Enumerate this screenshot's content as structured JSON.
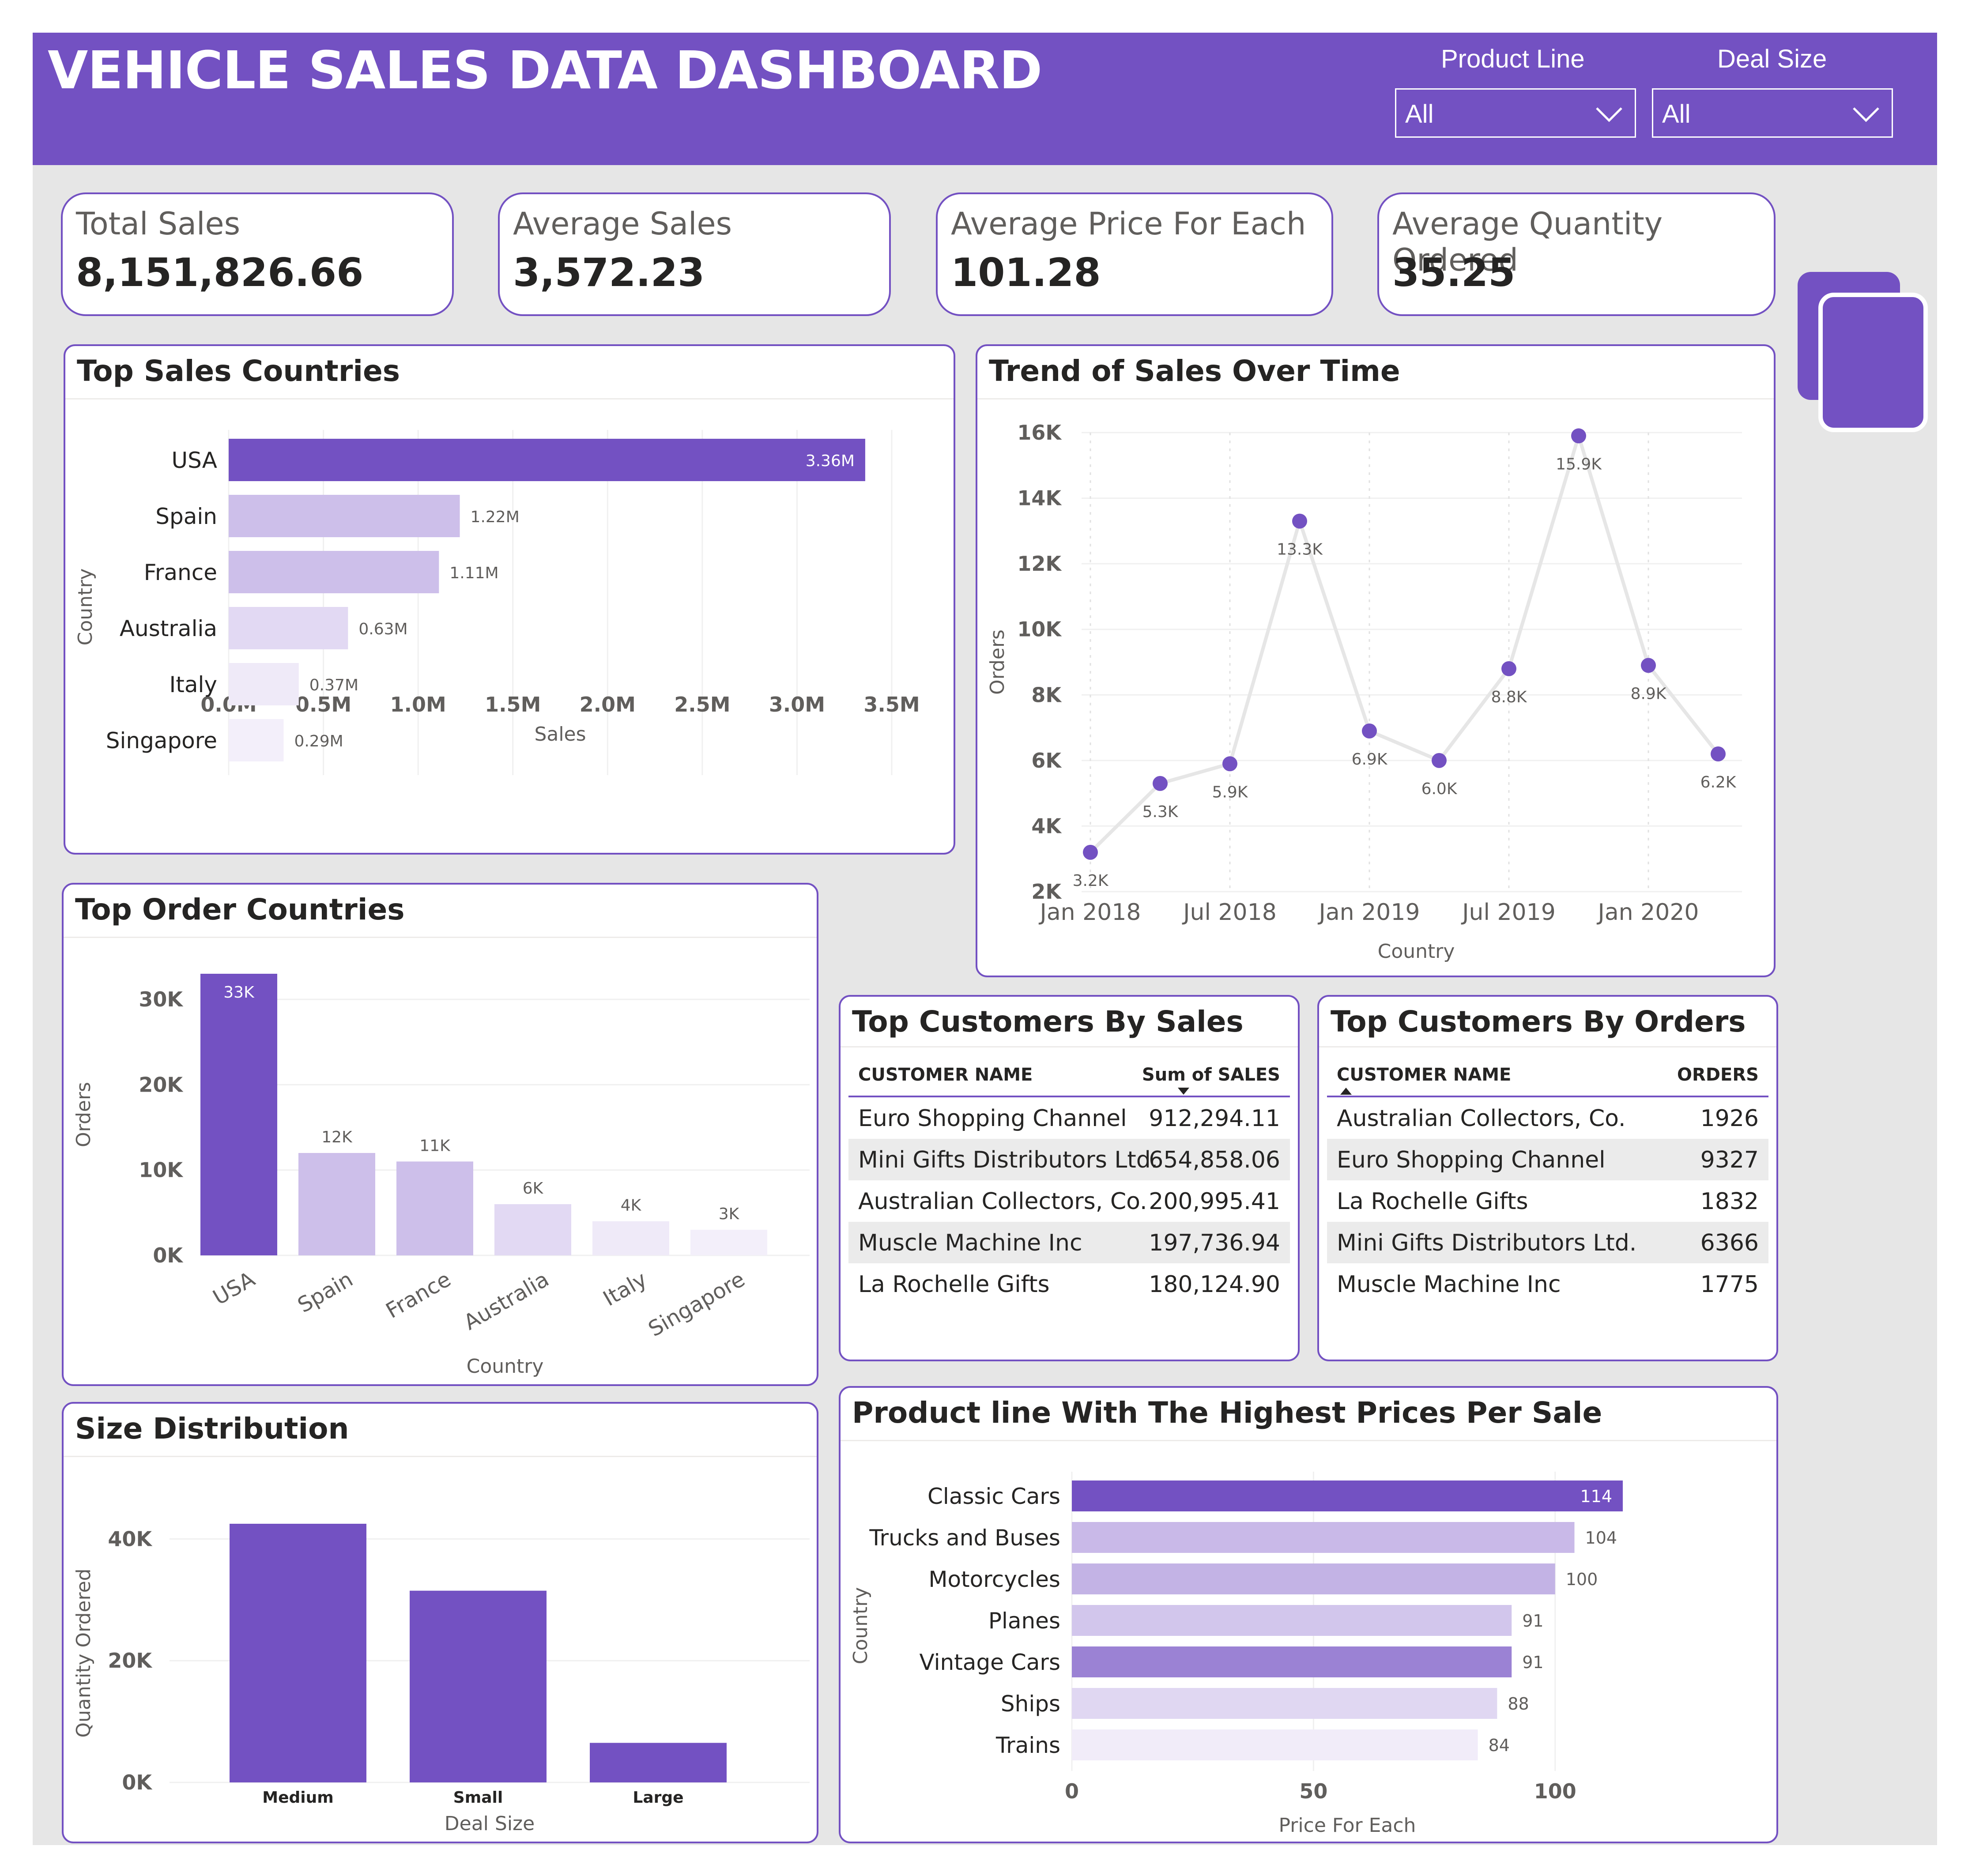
{
  "header": {
    "title": "VEHICLE SALES DATA DASHBOARD",
    "slicers": [
      {
        "label": "Product Line",
        "value": "All"
      },
      {
        "label": "Deal Size",
        "value": "All"
      }
    ],
    "accent_color": "#7351C2"
  },
  "kpis": [
    {
      "label": "Total Sales",
      "value": "8,151,826.66"
    },
    {
      "label": "Average Sales",
      "value": "3,572.23"
    },
    {
      "label": "Average Price For Each",
      "value": "101.28"
    },
    {
      "label": "Average Quantity Ordered",
      "value": "35.25"
    }
  ],
  "icons": {
    "copy_icon": "copy-icon",
    "dropdown_icon": "chevron-down-icon"
  },
  "panels": {
    "top_sales_countries": {
      "title": "Top Sales Countries",
      "chart_data": {
        "type": "bar",
        "orientation": "horizontal",
        "categories": [
          "USA",
          "Spain",
          "France",
          "Australia",
          "Italy",
          "Singapore"
        ],
        "values": [
          3.36,
          1.22,
          1.11,
          0.63,
          0.37,
          0.29
        ],
        "data_labels": [
          "3.36M",
          "1.22M",
          "1.11M",
          "0.63M",
          "0.37M",
          "0.29M"
        ],
        "colors": [
          "#7351C2",
          "#CDBFEA",
          "#CDBFEA",
          "#E2D9F3",
          "#EFEAF8",
          "#F3EFFA"
        ],
        "xlim": [
          0,
          3.5
        ],
        "xticks": [
          "0.0M",
          "0.5M",
          "1.0M",
          "1.5M",
          "2.0M",
          "2.5M",
          "3.0M",
          "3.5M"
        ],
        "xlabel": "Sales",
        "ylabel": "Country",
        "grid": true
      }
    },
    "trend_of_sales": {
      "title": "Trend of Sales Over Time",
      "chart_data": {
        "type": "line",
        "x": [
          "2018-01",
          "2018-04",
          "2018-07",
          "2018-10",
          "2019-01",
          "2019-04",
          "2019-07",
          "2019-10",
          "2020-01",
          "2020-04"
        ],
        "values": [
          3.2,
          5.3,
          5.9,
          13.3,
          6.9,
          6.0,
          8.8,
          15.9,
          8.9,
          6.2
        ],
        "data_labels": [
          "3.2K",
          "5.3K",
          "5.9K",
          "13.3K",
          "6.9K",
          "6.0K",
          "8.8K",
          "15.9K",
          "8.9K",
          "6.2K"
        ],
        "ylim": [
          2,
          16
        ],
        "yticks": [
          "2K",
          "4K",
          "6K",
          "8K",
          "10K",
          "12K",
          "14K",
          "16K"
        ],
        "xticks": [
          "Jan 2018",
          "Jul 2018",
          "Jan 2019",
          "Jul 2019",
          "Jan 2020"
        ],
        "xlabel": "Country",
        "ylabel": "Orders",
        "line_color": "#E6E6E6",
        "marker_color": "#7351C2",
        "grid": true
      }
    },
    "top_order_countries": {
      "title": "Top Order Countries",
      "chart_data": {
        "type": "bar",
        "orientation": "vertical",
        "categories": [
          "USA",
          "Spain",
          "France",
          "Australia",
          "Italy",
          "Singapore"
        ],
        "values": [
          33,
          12,
          11,
          6,
          4,
          3
        ],
        "data_labels": [
          "33K",
          "12K",
          "11K",
          "6K",
          "4K",
          "3K"
        ],
        "colors": [
          "#7351C2",
          "#CDBFEA",
          "#CDBFEA",
          "#E2D9F3",
          "#EFEAF8",
          "#F3EFFA"
        ],
        "ylim": [
          0,
          33
        ],
        "yticks": [
          "0K",
          "10K",
          "20K",
          "30K"
        ],
        "xlabel": "Country",
        "ylabel": "Orders",
        "grid": true
      }
    },
    "top_customers_by_sales": {
      "title": "Top Customers By Sales",
      "columns": [
        "CUSTOMER NAME",
        "Sum of SALES"
      ],
      "rows": [
        {
          "name": "Euro Shopping Channel",
          "value": "912,294.11"
        },
        {
          "name": "Mini Gifts Distributors Ltd.",
          "value": "654,858.06"
        },
        {
          "name": "Australian Collectors, Co.",
          "value": "200,995.41"
        },
        {
          "name": "Muscle Machine Inc",
          "value": "197,736.94"
        },
        {
          "name": "La Rochelle Gifts",
          "value": "180,124.90"
        }
      ]
    },
    "top_customers_by_orders": {
      "title": "Top Customers By Orders",
      "columns": [
        "CUSTOMER NAME",
        "ORDERS"
      ],
      "rows": [
        {
          "name": "Australian Collectors, Co.",
          "value": "1926"
        },
        {
          "name": "Euro Shopping Channel",
          "value": "9327"
        },
        {
          "name": "La Rochelle Gifts",
          "value": "1832"
        },
        {
          "name": "Mini Gifts Distributors Ltd.",
          "value": "6366"
        },
        {
          "name": "Muscle Machine Inc",
          "value": "1775"
        }
      ]
    },
    "size_distribution": {
      "title": "Size Distribution",
      "chart_data": {
        "type": "bar",
        "orientation": "vertical",
        "categories": [
          "Medium",
          "Small",
          "Large"
        ],
        "values": [
          42.5,
          31.5,
          6.5
        ],
        "colors": [
          "#7351C2",
          "#7351C2",
          "#7351C2"
        ],
        "ylim": [
          0,
          42.5
        ],
        "yticks": [
          "0K",
          "20K",
          "40K"
        ],
        "xlabel": "Deal Size",
        "ylabel": "Quantity Ordered",
        "grid": true
      }
    },
    "product_line_prices": {
      "title": "Product line With The Highest Prices Per Sale",
      "chart_data": {
        "type": "bar",
        "orientation": "horizontal",
        "categories": [
          "Classic Cars",
          "Trucks and Buses",
          "Motorcycles",
          "Planes",
          "Vintage Cars",
          "Ships",
          "Trains"
        ],
        "values": [
          114,
          104,
          100,
          91,
          91,
          88,
          84
        ],
        "data_labels": [
          "114",
          "104",
          "100",
          "91",
          "91",
          "88",
          "84"
        ],
        "colors": [
          "#7351C2",
          "#C9B9E8",
          "#C3B3E5",
          "#D2C6EC",
          "#9B82D4",
          "#E0D7F2",
          "#F1ECF9"
        ],
        "xlim": [
          0,
          114
        ],
        "xticks": [
          "0",
          "50",
          "100"
        ],
        "xlabel": "Price For Each",
        "ylabel": "Country",
        "grid": true
      }
    }
  }
}
